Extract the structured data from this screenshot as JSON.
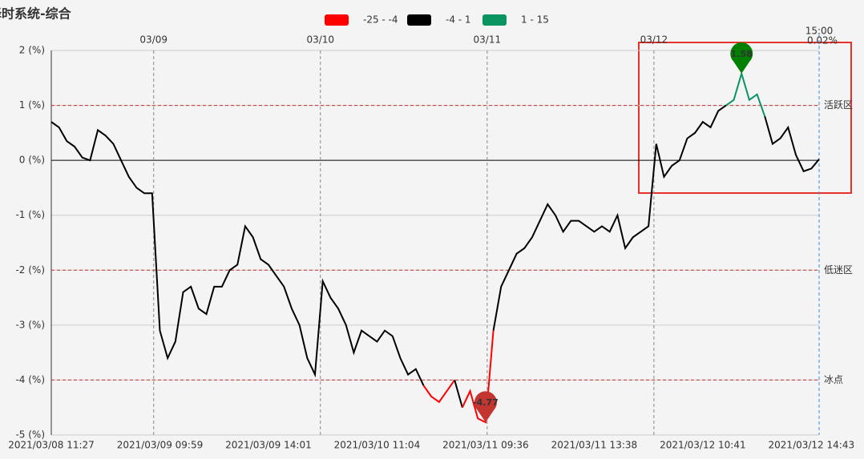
{
  "chart_data": {
    "type": "line",
    "title": "择时系统-综合",
    "legend_pieces": [
      {
        "min": -25,
        "max": -4,
        "label": "-25 - -4",
        "color": "#ff0000"
      },
      {
        "min": -4,
        "max": 1,
        "label": "-4 - 1",
        "color": "#000000"
      },
      {
        "min": 1,
        "max": 15,
        "label": "1 - 15",
        "color": "#0a9462"
      }
    ],
    "categories": [
      "2021/03/08 11:27",
      null,
      null,
      null,
      null,
      null,
      null,
      null,
      null,
      null,
      null,
      null,
      null,
      null,
      "2021/03/09 09:59",
      null,
      null,
      null,
      null,
      null,
      null,
      null,
      null,
      null,
      null,
      null,
      null,
      null,
      "2021/03/09 14:01",
      null,
      null,
      null,
      null,
      null,
      null,
      null,
      null,
      null,
      null,
      null,
      null,
      null,
      "2021/03/10 11:04",
      null,
      null,
      null,
      null,
      null,
      null,
      null,
      null,
      null,
      null,
      null,
      null,
      null,
      "2021/03/11 09:36",
      null,
      null,
      null,
      null,
      null,
      null,
      null,
      null,
      null,
      null,
      null,
      null,
      null,
      "2021/03/11 13:38",
      null,
      null,
      null,
      null,
      null,
      null,
      null,
      null,
      null,
      null,
      null,
      null,
      null,
      "2021/03/12 10:41",
      null,
      null,
      null,
      null,
      null,
      null,
      null,
      null,
      null,
      null,
      null,
      null,
      null,
      "2021/03/12 14:43",
      null
    ],
    "values": [
      0.7,
      0.6,
      0.35,
      0.25,
      0.05,
      0.0,
      0.55,
      0.45,
      0.3,
      0.0,
      -0.3,
      -0.5,
      -0.6,
      -0.6,
      -3.1,
      -3.6,
      -3.3,
      -2.4,
      -2.3,
      -2.7,
      -2.8,
      -2.3,
      -2.3,
      -2.0,
      -1.9,
      -1.2,
      -1.4,
      -1.8,
      -1.9,
      -2.1,
      -2.3,
      -2.7,
      -3.0,
      -3.6,
      -3.9,
      -2.2,
      -2.5,
      -2.7,
      -3.0,
      -3.5,
      -3.1,
      -3.2,
      -3.3,
      -3.1,
      -3.2,
      -3.6,
      -3.9,
      -3.8,
      -4.1,
      -4.3,
      -4.4,
      -4.2,
      -4.0,
      -4.5,
      -4.2,
      -4.7,
      -4.77,
      -3.1,
      -2.3,
      -2.0,
      -1.7,
      -1.6,
      -1.4,
      -1.1,
      -0.8,
      -1.0,
      -1.3,
      -1.1,
      -1.1,
      -1.2,
      -1.3,
      -1.2,
      -1.3,
      -1.0,
      -1.6,
      -1.4,
      -1.3,
      -1.2,
      0.3,
      -0.3,
      -0.1,
      0.0,
      0.4,
      0.5,
      0.7,
      0.6,
      0.9,
      1.0,
      1.1,
      1.58,
      1.1,
      1.2,
      0.8,
      0.3,
      0.4,
      0.6,
      0.1,
      -0.2,
      -0.15,
      0.02
    ],
    "ylim": [
      -5,
      2
    ],
    "yticks": [
      {
        "value": -5,
        "label": "-5 (%)"
      },
      {
        "value": -4,
        "label": "-4 (%)"
      },
      {
        "value": -3,
        "label": "-3 (%)"
      },
      {
        "value": -2,
        "label": "-2 (%)"
      },
      {
        "value": -1,
        "label": "-1 (%)"
      },
      {
        "value": 0,
        "label": "0 (%)"
      },
      {
        "value": 1,
        "label": "1 (%)"
      },
      {
        "value": 2,
        "label": "2 (%)"
      }
    ],
    "grid": true,
    "top_labels": [
      "03/09",
      "03/10",
      "03/11",
      "03/12"
    ],
    "end_marker": {
      "label": "15:00",
      "value_label": "0.02%"
    },
    "mark_lines": [
      {
        "value": 1,
        "label": "活跃区"
      },
      {
        "value": -2,
        "label": "低迷区"
      },
      {
        "value": -4,
        "label": "冰点"
      }
    ],
    "max_pin_color": "#008000",
    "min_pin_color": "#c23531"
  }
}
